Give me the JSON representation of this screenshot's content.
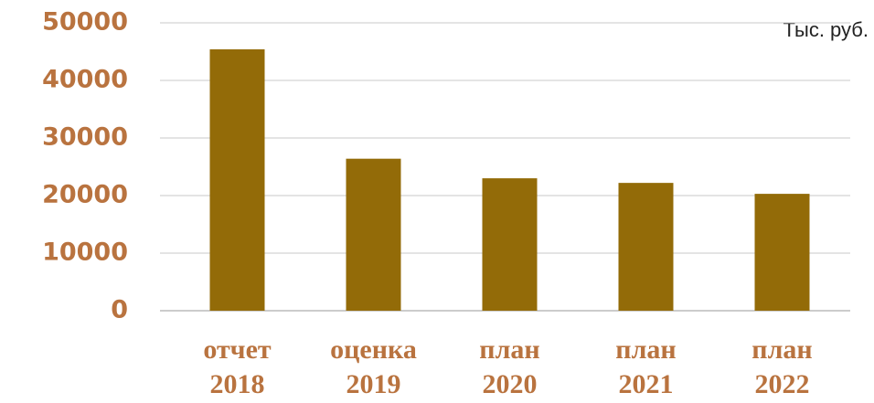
{
  "chart_data": {
    "type": "bar",
    "unit_label": "Тыс. руб.",
    "categories": [
      [
        "отчет",
        "2018"
      ],
      [
        "оценка",
        "2019"
      ],
      [
        "план",
        "2020"
      ],
      [
        "план",
        "2021"
      ],
      [
        "план",
        "2022"
      ]
    ],
    "values": [
      45400,
      26400,
      23000,
      22200,
      20300
    ],
    "color": "#936b08",
    "ylim": [
      0,
      50000
    ],
    "yticks": [
      0,
      10000,
      20000,
      30000,
      40000,
      50000
    ],
    "grid": true
  }
}
